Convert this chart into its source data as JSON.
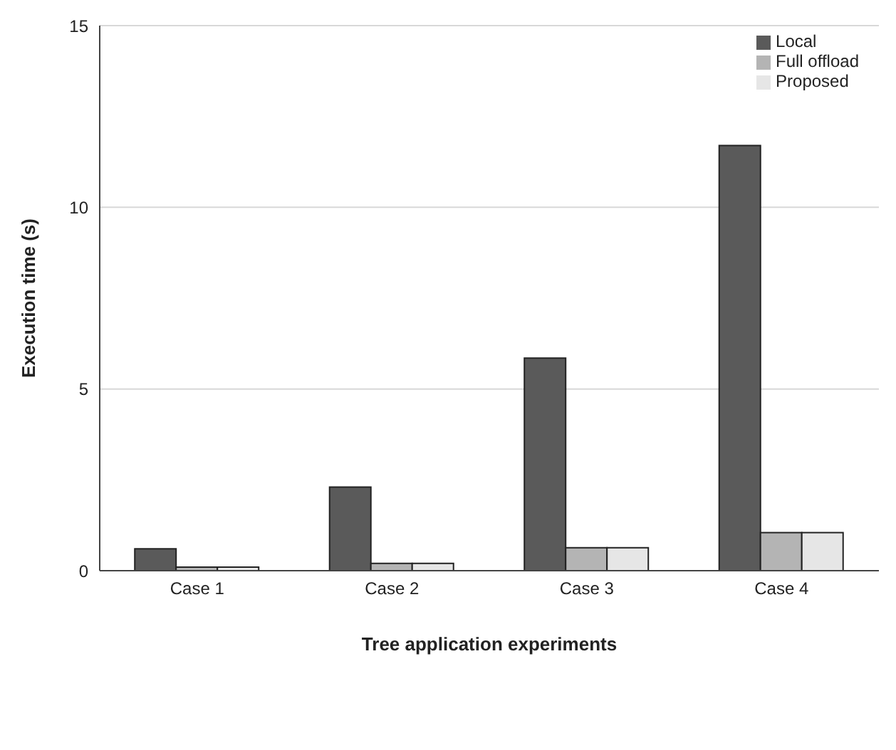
{
  "chart_data": {
    "type": "bar",
    "xlabel": "Tree application experiments",
    "ylabel": "Execution time (s)",
    "categories": [
      "Case 1",
      "Case 2",
      "Case 3",
      "Case 4"
    ],
    "series": [
      {
        "name": "Local",
        "color": "#5a5a5a",
        "values": [
          0.6,
          2.3,
          5.85,
          11.7
        ]
      },
      {
        "name": "Full offload",
        "color": "#b4b4b4",
        "values": [
          0.1,
          0.2,
          0.63,
          1.05
        ]
      },
      {
        "name": "Proposed",
        "color": "#e6e6e6",
        "values": [
          0.1,
          0.2,
          0.63,
          1.05
        ]
      }
    ],
    "ylim": [
      0,
      15
    ],
    "yticks": [
      0,
      5,
      10,
      15
    ],
    "grid": "y",
    "legend": "top right"
  }
}
